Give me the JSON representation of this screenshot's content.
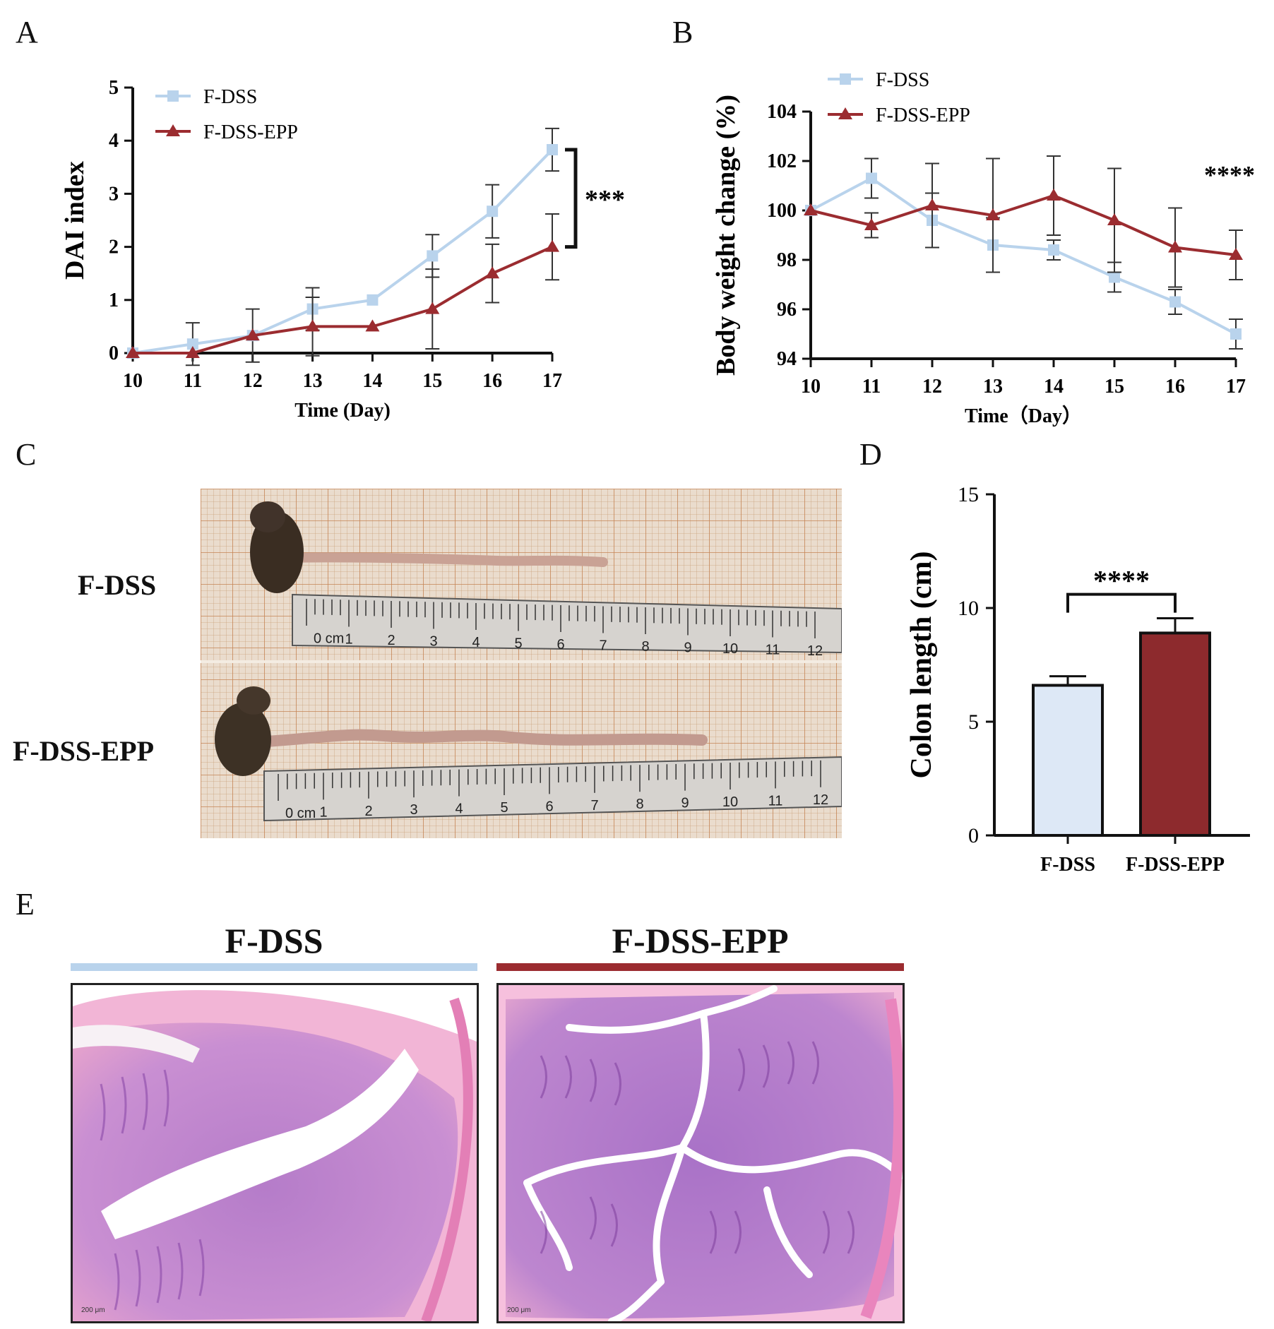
{
  "panels": {
    "a": "A",
    "b": "B",
    "c": "C",
    "d": "D",
    "e": "E"
  },
  "colors": {
    "fdss": "#b9d3ec",
    "fdssepp": "#9b2c30",
    "bar_fdss": "#dde8f6",
    "bar_epp": "#8d2a2d"
  },
  "chart_data": [
    {
      "id": "A",
      "type": "line",
      "title": "",
      "xlabel": "Time (Day)",
      "ylabel": "DAI index",
      "x": [
        10,
        11,
        12,
        13,
        14,
        15,
        16,
        17
      ],
      "xlim": [
        10,
        17
      ],
      "ylim": [
        0,
        5
      ],
      "yticks": [
        0,
        1,
        2,
        3,
        4,
        5
      ],
      "series": [
        {
          "name": "F-DSS",
          "values": [
            0,
            0.17,
            0.33,
            0.83,
            1.0,
            1.83,
            2.67,
            3.83
          ],
          "errors": [
            0,
            0.4,
            0.5,
            0.4,
            0,
            0.4,
            0.5,
            0.4
          ]
        },
        {
          "name": "F-DSS-EPP",
          "values": [
            0,
            0,
            0.33,
            0.5,
            0.5,
            0.83,
            1.5,
            2.0
          ],
          "errors": [
            0,
            0,
            0,
            0.55,
            0,
            0.75,
            0.55,
            0.62
          ]
        }
      ],
      "annotation": "***"
    },
    {
      "id": "B",
      "type": "line",
      "title": "",
      "xlabel": "Time（Day）",
      "ylabel": "Body weight change (%)",
      "x": [
        10,
        11,
        12,
        13,
        14,
        15,
        16,
        17
      ],
      "xlim": [
        10,
        17
      ],
      "ylim": [
        94,
        104
      ],
      "yticks": [
        94,
        96,
        98,
        100,
        102,
        104
      ],
      "series": [
        {
          "name": "F-DSS",
          "values": [
            100,
            101.3,
            99.6,
            98.6,
            98.4,
            97.3,
            96.3,
            95.0
          ],
          "errors": [
            0,
            0.8,
            1.1,
            1.1,
            0.4,
            0.6,
            0.5,
            0.6
          ]
        },
        {
          "name": "F-DSS-EPP",
          "values": [
            100,
            99.4,
            100.2,
            99.8,
            100.6,
            99.6,
            98.5,
            98.2
          ],
          "errors": [
            0,
            0.5,
            1.7,
            2.3,
            1.6,
            2.1,
            1.6,
            1.0
          ]
        }
      ],
      "annotation": "****"
    },
    {
      "id": "D",
      "type": "bar",
      "title": "",
      "xlabel": "",
      "ylabel": "Colon length (cm)",
      "categories": [
        "F-DSS",
        "F-DSS-EPP"
      ],
      "values": [
        6.6,
        8.9
      ],
      "errors": [
        0.4,
        0.65
      ],
      "ylim": [
        0,
        15
      ],
      "yticks": [
        0,
        5,
        10,
        15
      ],
      "annotation": "****"
    }
  ],
  "photo_c": {
    "groups": [
      "F-DSS",
      "F-DSS-EPP"
    ],
    "ruler_ticks": [
      "0 cm",
      "1",
      "2",
      "3",
      "4",
      "5",
      "6",
      "7",
      "8",
      "9",
      "10",
      "11",
      "12"
    ]
  },
  "histology": {
    "groups": [
      "F-DSS",
      "F-DSS-EPP"
    ],
    "scale_label": "200 μm"
  }
}
